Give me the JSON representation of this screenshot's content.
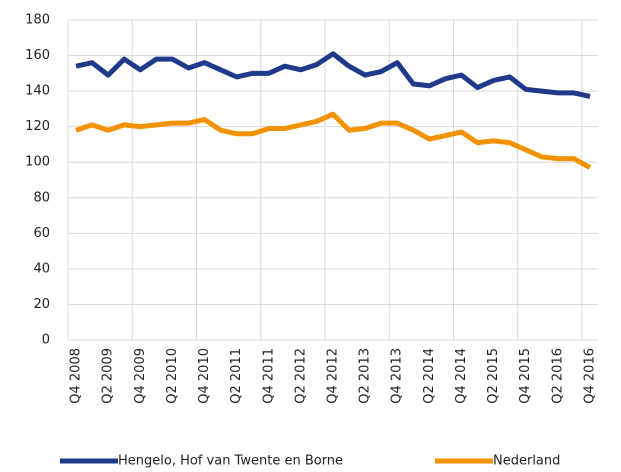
{
  "chart_data": {
    "type": "line",
    "categories": [
      "Q4 2008",
      null,
      "Q2 2009",
      null,
      "Q4 2009",
      null,
      "Q2 2010",
      null,
      "Q4 2010",
      null,
      "Q2 2011",
      null,
      "Q4 2011",
      null,
      "Q2 2012",
      null,
      "Q4 2012",
      null,
      "Q2 2013",
      null,
      "Q4 2013",
      null,
      "Q2 2014",
      null,
      "Q4 2014",
      null,
      "Q2 2015",
      null,
      "Q4 2015",
      null,
      "Q2 2016",
      null,
      "Q4 2016"
    ],
    "series": [
      {
        "name": "Hengelo, Hof van Twente en Borne",
        "color": "#1f3a8a",
        "values": [
          154,
          156,
          149,
          158,
          152,
          158,
          158,
          153,
          156,
          152,
          148,
          150,
          150,
          154,
          152,
          155,
          161,
          154,
          149,
          151,
          156,
          144,
          143,
          147,
          149,
          142,
          146,
          148,
          141,
          140,
          139,
          139,
          137
        ]
      },
      {
        "name": "Nederland",
        "color": "#f39200",
        "values": [
          118,
          121,
          118,
          121,
          120,
          121,
          122,
          122,
          124,
          118,
          116,
          116,
          119,
          119,
          121,
          123,
          127,
          118,
          119,
          122,
          122,
          118,
          113,
          115,
          117,
          111,
          112,
          111,
          107,
          103,
          102,
          102,
          97
        ]
      }
    ],
    "ylim": [
      0,
      180
    ],
    "yticks": [
      0,
      20,
      40,
      60,
      80,
      100,
      120,
      140,
      160,
      180
    ],
    "grid": true,
    "legend": "bottom"
  }
}
